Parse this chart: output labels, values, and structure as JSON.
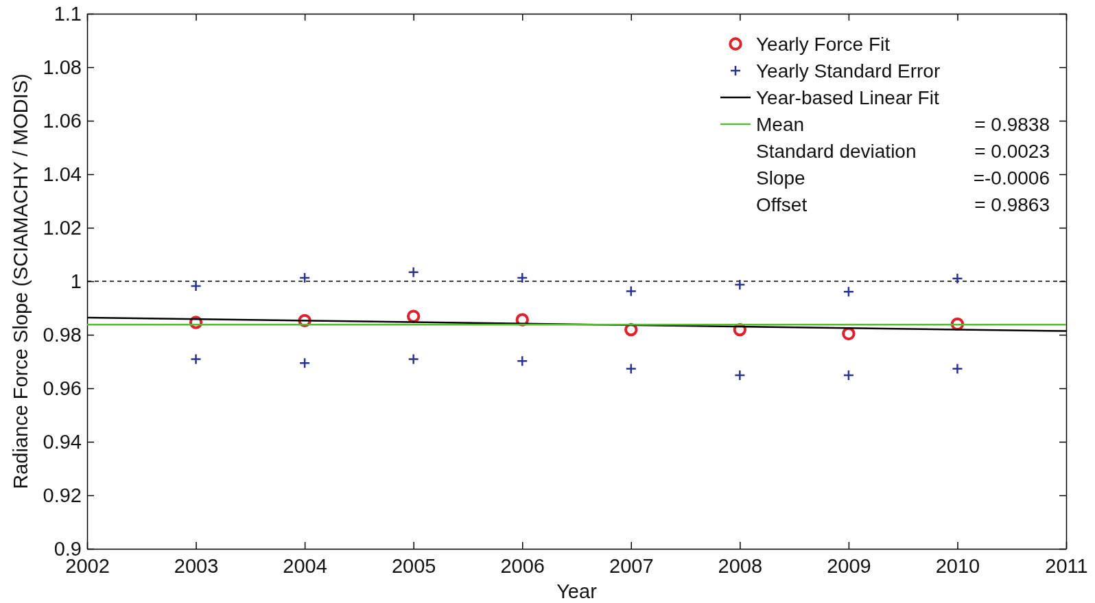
{
  "chart_data": {
    "type": "scatter",
    "xlabel": "Year",
    "ylabel": "Radiance Force Slope (SCIAMACHY / MODIS)",
    "xlim": [
      2002,
      2011
    ],
    "xticks": [
      2002,
      2003,
      2004,
      2005,
      2006,
      2007,
      2008,
      2009,
      2010,
      2011
    ],
    "ylim": [
      0.9,
      1.1
    ],
    "yticks": [
      0.9,
      0.92,
      0.94,
      0.96,
      0.98,
      1,
      1.02,
      1.04,
      1.06,
      1.08,
      1.1
    ],
    "grid": false,
    "legend": "top right",
    "series": [
      {
        "name": "Yearly Force Fit",
        "type": "scatter",
        "marker": "circle",
        "color": "#e0202a",
        "x": [
          2003,
          2004,
          2005,
          2006,
          2007,
          2008,
          2009,
          2010
        ],
        "values": [
          0.9846,
          0.9853,
          0.9869,
          0.9856,
          0.9819,
          0.9819,
          0.9804,
          0.984
        ]
      },
      {
        "name": "Yearly Standard Error",
        "type": "scatter",
        "marker": "cross",
        "color": "#2b3390",
        "x": [
          2003,
          2004,
          2005,
          2006,
          2007,
          2008,
          2009,
          2010,
          2003,
          2004,
          2005,
          2006,
          2007,
          2008,
          2009,
          2010
        ],
        "values": [
          0.9982,
          1.0013,
          1.0034,
          1.0013,
          0.9963,
          0.9987,
          0.9961,
          1.001,
          0.9709,
          0.9694,
          0.9709,
          0.9702,
          0.9673,
          0.9649,
          0.9649,
          0.9673
        ]
      },
      {
        "name": "Year-based Linear Fit",
        "type": "line",
        "marker": "none",
        "color": "#000000",
        "x": [
          2002,
          2011
        ],
        "values": [
          0.9864,
          0.9814
        ]
      },
      {
        "name": "Mean",
        "type": "line",
        "marker": "none",
        "color": "#5cb83a",
        "x": [
          2002,
          2011
        ],
        "values": [
          0.9838,
          0.9838
        ]
      }
    ],
    "ref_lines": [
      {
        "axis": "y",
        "value": 1,
        "color": "#000000",
        "line_style": "dashed"
      }
    ],
    "annotations": [
      "=  0.9838",
      "Standard deviation",
      "=  0.0023",
      "Slope",
      "=-0.0006",
      "Offset",
      "=  0.9863"
    ]
  }
}
